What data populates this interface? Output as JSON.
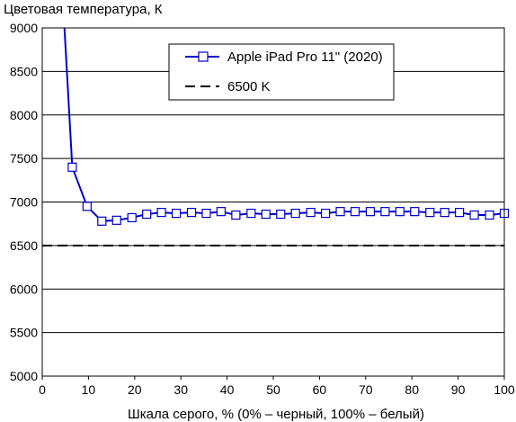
{
  "chart_data": {
    "type": "line",
    "ylabel": "Цветовая температура, К",
    "xlabel": "Шкала серого, % (0% – черный, 100% – белый)",
    "xlim": [
      0,
      100
    ],
    "ylim": [
      5000,
      9000
    ],
    "x_ticks": [
      "0",
      "10",
      "20",
      "30",
      "40",
      "50",
      "60",
      "70",
      "80",
      "90",
      "100"
    ],
    "y_ticks": [
      "5000",
      "5500",
      "6000",
      "6500",
      "7000",
      "7500",
      "8000",
      "8500",
      "9000"
    ],
    "grid": "horizontal",
    "legend_position": "top-right",
    "series": [
      {
        "name": "Apple iPad Pro 11\" (2020)",
        "color": "#0000cc",
        "marker": "square",
        "x": [
          4.8,
          6.5,
          9.7,
          12.9,
          16.1,
          19.4,
          22.6,
          25.8,
          29.0,
          32.3,
          35.5,
          38.7,
          41.9,
          45.2,
          48.4,
          51.6,
          54.8,
          58.1,
          61.3,
          64.5,
          67.7,
          71.0,
          74.2,
          77.4,
          80.6,
          83.9,
          87.1,
          90.3,
          93.5,
          96.8,
          100
        ],
        "y": [
          9000,
          7400,
          6950,
          6780,
          6790,
          6820,
          6860,
          6880,
          6870,
          6880,
          6870,
          6890,
          6850,
          6870,
          6860,
          6860,
          6870,
          6880,
          6870,
          6890,
          6890,
          6890,
          6890,
          6890,
          6890,
          6880,
          6880,
          6880,
          6850,
          6850,
          6870
        ],
        "markers_from_index": 1
      },
      {
        "name": "6500 K",
        "color": "#000000",
        "dashed": true,
        "x": [
          0,
          100
        ],
        "y": [
          6500,
          6500
        ]
      }
    ]
  }
}
